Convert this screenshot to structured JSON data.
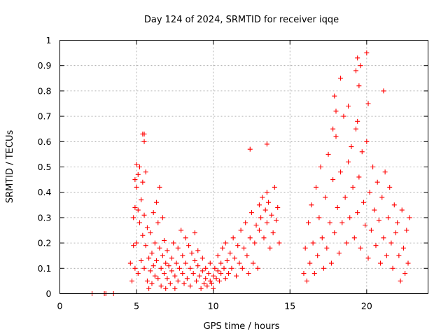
{
  "chart_data": {
    "type": "scatter",
    "title": "Day 124 of 2024, SRMTID for receiver iqqe",
    "xlabel": "GPS time / hours",
    "ylabel": "SRMTID / TECUs",
    "xlim": [
      0,
      24
    ],
    "ylim": [
      0,
      1
    ],
    "xticks": [
      0,
      5,
      10,
      15,
      20
    ],
    "yticks": [
      0,
      0.1,
      0.2,
      0.3,
      0.4,
      0.5,
      0.6,
      0.7,
      0.8,
      0.9,
      1
    ],
    "grid": true,
    "marker": "plus",
    "color": "#ff0000",
    "series": [
      {
        "name": "SRMTID",
        "x": [
          2.1,
          2.9,
          3.0,
          3.5,
          4.6,
          4.7,
          4.8,
          4.8,
          4.9,
          4.9,
          5.0,
          5.0,
          5.1,
          5.1,
          5.1,
          5.2,
          5.2,
          5.3,
          5.3,
          5.4,
          5.4,
          5.5,
          5.5,
          5.5,
          5.6,
          5.6,
          5.7,
          5.7,
          5.8,
          5.8,
          5.9,
          5.9,
          6.0,
          6.0,
          6.1,
          6.1,
          6.2,
          6.2,
          6.3,
          6.3,
          6.4,
          6.4,
          6.5,
          6.5,
          6.6,
          6.6,
          6.7,
          6.7,
          6.8,
          6.8,
          6.9,
          6.9,
          7.0,
          7.0,
          7.1,
          7.2,
          7.3,
          7.3,
          7.4,
          7.5,
          7.5,
          7.6,
          7.7,
          7.7,
          7.8,
          7.9,
          8.0,
          8.0,
          8.1,
          8.2,
          8.2,
          8.3,
          8.4,
          8.5,
          8.5,
          8.6,
          8.7,
          8.8,
          8.8,
          8.9,
          9.0,
          9.0,
          9.1,
          9.2,
          9.3,
          9.3,
          9.4,
          9.5,
          9.5,
          9.6,
          9.7,
          9.8,
          9.8,
          9.9,
          10.0,
          10.0,
          10.1,
          10.2,
          10.3,
          10.3,
          10.4,
          10.5,
          10.5,
          10.6,
          10.7,
          10.8,
          10.8,
          10.9,
          11.0,
          11.1,
          11.2,
          11.3,
          11.4,
          11.5,
          11.6,
          11.7,
          11.8,
          11.9,
          12.0,
          12.1,
          12.2,
          12.3,
          12.4,
          12.5,
          12.6,
          12.7,
          12.8,
          12.9,
          13.0,
          13.0,
          13.1,
          13.2,
          13.3,
          13.4,
          13.5,
          13.5,
          13.6,
          13.7,
          13.8,
          13.9,
          14.0,
          14.1,
          14.2,
          14.3,
          15.9,
          16.0,
          16.1,
          16.2,
          16.3,
          16.4,
          16.5,
          16.6,
          16.7,
          16.8,
          16.9,
          17.0,
          17.1,
          17.2,
          17.3,
          17.4,
          17.5,
          17.6,
          17.7,
          17.8,
          17.9,
          18.0,
          18.1,
          18.2,
          18.3,
          18.4,
          18.5,
          18.6,
          18.7,
          18.8,
          18.9,
          19.0,
          19.1,
          19.2,
          19.3,
          19.4,
          19.5,
          19.6,
          19.7,
          19.8,
          19.9,
          20.0,
          20.1,
          20.2,
          20.3,
          20.4,
          20.5,
          20.6,
          20.7,
          20.8,
          20.9,
          21.0,
          21.1,
          21.2,
          21.3,
          21.4,
          21.5,
          21.6,
          21.7,
          21.8,
          21.9,
          22.0,
          22.1,
          22.2,
          22.3,
          22.4,
          22.5,
          22.6,
          22.7,
          22.8,
          17.9,
          18.0,
          18.3,
          19.3,
          19.4,
          19.5,
          19.6,
          20.0,
          20.1,
          19.4,
          17.8,
          18.8,
          21.1,
          13.5,
          12.4,
          5.4,
          5.5,
          5.0,
          4.9
        ],
        "y": [
          0.0,
          0.0,
          0.0,
          0.0,
          0.12,
          0.05,
          0.3,
          0.19,
          0.1,
          0.34,
          0.42,
          0.2,
          0.47,
          0.33,
          0.08,
          0.28,
          0.5,
          0.37,
          0.13,
          0.23,
          0.44,
          0.6,
          0.31,
          0.1,
          0.19,
          0.48,
          0.26,
          0.05,
          0.14,
          0.02,
          0.09,
          0.24,
          0.16,
          0.04,
          0.11,
          0.32,
          0.2,
          0.07,
          0.36,
          0.13,
          0.28,
          0.06,
          0.18,
          0.42,
          0.1,
          0.03,
          0.15,
          0.3,
          0.08,
          0.21,
          0.02,
          0.12,
          0.17,
          0.06,
          0.11,
          0.04,
          0.14,
          0.09,
          0.2,
          0.07,
          0.02,
          0.12,
          0.18,
          0.05,
          0.1,
          0.25,
          0.08,
          0.15,
          0.04,
          0.22,
          0.12,
          0.06,
          0.19,
          0.1,
          0.03,
          0.16,
          0.08,
          0.24,
          0.13,
          0.05,
          0.11,
          0.17,
          0.07,
          0.02,
          0.09,
          0.14,
          0.04,
          0.06,
          0.1,
          0.03,
          0.08,
          0.05,
          0.12,
          0.04,
          0.07,
          0.02,
          0.1,
          0.06,
          0.09,
          0.15,
          0.05,
          0.12,
          0.08,
          0.18,
          0.1,
          0.06,
          0.2,
          0.13,
          0.08,
          0.16,
          0.1,
          0.22,
          0.14,
          0.07,
          0.19,
          0.12,
          0.25,
          0.1,
          0.18,
          0.28,
          0.15,
          0.08,
          0.22,
          0.32,
          0.12,
          0.2,
          0.27,
          0.1,
          0.35,
          0.25,
          0.3,
          0.38,
          0.22,
          0.33,
          0.4,
          0.28,
          0.36,
          0.18,
          0.31,
          0.24,
          0.42,
          0.29,
          0.34,
          0.2,
          0.08,
          0.18,
          0.05,
          0.28,
          0.12,
          0.35,
          0.2,
          0.08,
          0.42,
          0.15,
          0.3,
          0.5,
          0.22,
          0.1,
          0.38,
          0.18,
          0.55,
          0.28,
          0.12,
          0.45,
          0.24,
          0.62,
          0.34,
          0.16,
          0.48,
          0.28,
          0.7,
          0.38,
          0.2,
          0.52,
          0.3,
          0.58,
          0.42,
          0.22,
          0.65,
          0.32,
          0.46,
          0.18,
          0.56,
          0.36,
          0.27,
          0.6,
          0.14,
          0.4,
          0.25,
          0.5,
          0.33,
          0.19,
          0.44,
          0.29,
          0.12,
          0.38,
          0.22,
          0.48,
          0.15,
          0.3,
          0.42,
          0.2,
          0.1,
          0.35,
          0.24,
          0.28,
          0.15,
          0.05,
          0.33,
          0.18,
          0.08,
          0.25,
          0.12,
          0.3,
          0.78,
          0.72,
          0.85,
          0.88,
          0.93,
          0.82,
          0.9,
          0.95,
          0.75,
          0.68,
          0.65,
          0.74,
          0.8,
          0.59,
          0.57,
          0.63,
          0.63,
          0.51,
          0.45
        ]
      }
    ]
  }
}
